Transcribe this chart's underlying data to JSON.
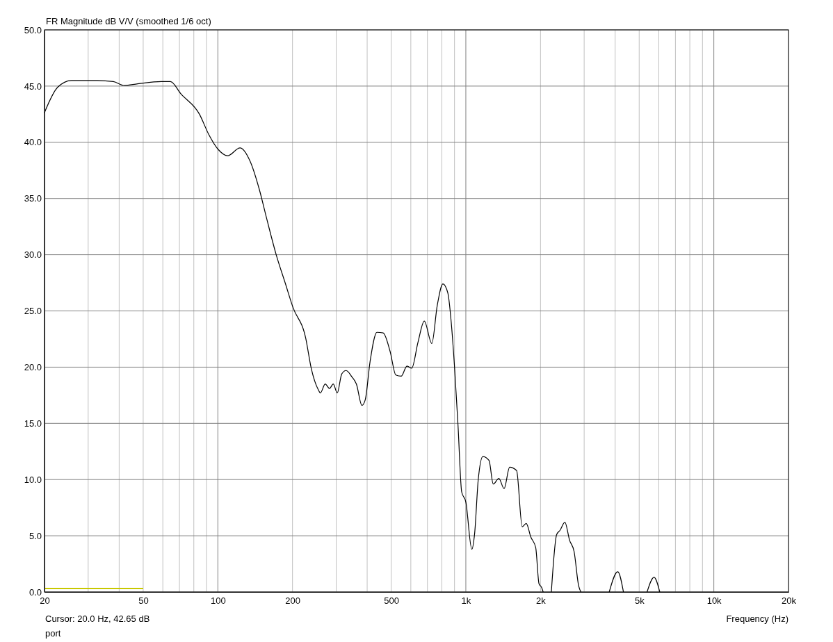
{
  "chart_data": {
    "type": "line",
    "title": "FR Magnitude dB V/V (smoothed 1/6 oct)",
    "xlabel": "Frequency (Hz)",
    "log": "x",
    "grid": true,
    "marker": "none",
    "line_style": "solid",
    "annotations": [
      "Cursor: 20.0 Hz, 42.65 dB",
      "port"
    ],
    "xlim": [
      20,
      20000
    ],
    "xticks": [
      20,
      {
        "value": 30,
        "label": null
      },
      {
        "value": 40,
        "label": null
      },
      50,
      {
        "value": 60,
        "label": null
      },
      {
        "value": 70,
        "label": null
      },
      {
        "value": 80,
        "label": null
      },
      {
        "value": 90,
        "label": null
      },
      100,
      200,
      {
        "value": 300,
        "label": null
      },
      {
        "value": 400,
        "label": null
      },
      500,
      {
        "value": 600,
        "label": null
      },
      {
        "value": 700,
        "label": null
      },
      {
        "value": 800,
        "label": null
      },
      {
        "value": 900,
        "label": null
      },
      {
        "value": 1000,
        "label": "1k"
      },
      {
        "value": 2000,
        "label": "2k"
      },
      {
        "value": 3000,
        "label": null
      },
      {
        "value": 4000,
        "label": null
      },
      {
        "value": 5000,
        "label": "5k"
      },
      {
        "value": 6000,
        "label": null
      },
      {
        "value": 7000,
        "label": null
      },
      {
        "value": 8000,
        "label": null
      },
      {
        "value": 9000,
        "label": null
      },
      {
        "value": 10000,
        "label": "10k"
      },
      {
        "value": 20000,
        "label": "20k"
      }
    ],
    "ylim": [
      0,
      50
    ],
    "yticks": [
      {
        "value": 0,
        "label": "0.0"
      },
      {
        "value": 5,
        "label": "5.0"
      },
      {
        "value": 10,
        "label": "10.0"
      },
      {
        "value": 15,
        "label": "15.0"
      },
      {
        "value": 20,
        "label": "20.0"
      },
      {
        "value": 25,
        "label": "25.0"
      },
      {
        "value": 30,
        "label": "30.0"
      },
      {
        "value": 35,
        "label": "35.0"
      },
      {
        "value": 40,
        "label": "40.0"
      },
      {
        "value": 45,
        "label": "45.0"
      },
      {
        "value": 50,
        "label": "50.0"
      }
    ],
    "series": [
      {
        "color": "#000000",
        "x": [
          20,
          22.6,
          25.7,
          32.6,
          37.9,
          42,
          47.5,
          59.2,
          64.4,
          71,
          84.3,
          91.9,
          100,
          109.6,
          122.9,
          135,
          147,
          157,
          171.9,
          186.8,
          201,
          226,
          238,
          254,
          259,
          271,
          282,
          292,
          303,
          316,
          329,
          348,
          362,
          381,
          393,
          411,
          438,
          464,
          495,
          522,
          549,
          579,
          605,
          641,
          680,
          729,
          767,
          808,
          846,
          873,
          901,
          930,
          962,
          1000,
          1057,
          1085,
          1122,
          1171,
          1240,
          1290,
          1359,
          1426,
          1502,
          1602,
          1688,
          1752,
          1827,
          1913,
          1972,
          2021,
          2050,
          2150,
          2212,
          2323,
          2400,
          2508,
          2620,
          2732,
          2850,
          2911,
          3300,
          3786,
          4098,
          4320,
          4900,
          5380,
          5740,
          6052
        ],
        "values": [
          42.65,
          44.9,
          45.5,
          45.5,
          45.4,
          45.05,
          45.2,
          45.4,
          45.4,
          44.3,
          42.5,
          40.7,
          39.4,
          38.8,
          39.5,
          38.3,
          35.8,
          33.3,
          30,
          27.5,
          25.3,
          22.6,
          19.9,
          18,
          17.7,
          18.5,
          18.1,
          18.5,
          17.7,
          19.4,
          19.7,
          19.1,
          18.5,
          16.6,
          17.1,
          20.5,
          23.1,
          23.05,
          21.4,
          19.3,
          19.2,
          20.1,
          19.9,
          22.2,
          24.1,
          22.1,
          25.5,
          27.4,
          26.6,
          24,
          19.9,
          14.8,
          8.9,
          8,
          3.8,
          5.2,
          10,
          12.05,
          11.7,
          9.6,
          10.1,
          9.2,
          11.1,
          10.8,
          5.8,
          6.1,
          4.9,
          3.95,
          0.74,
          0.4,
          0,
          null,
          0,
          5.1,
          5.5,
          6.2,
          4.6,
          3.6,
          0.55,
          0,
          null,
          0,
          1.8,
          0,
          null,
          0,
          1.3,
          0
        ]
      }
    ]
  }
}
